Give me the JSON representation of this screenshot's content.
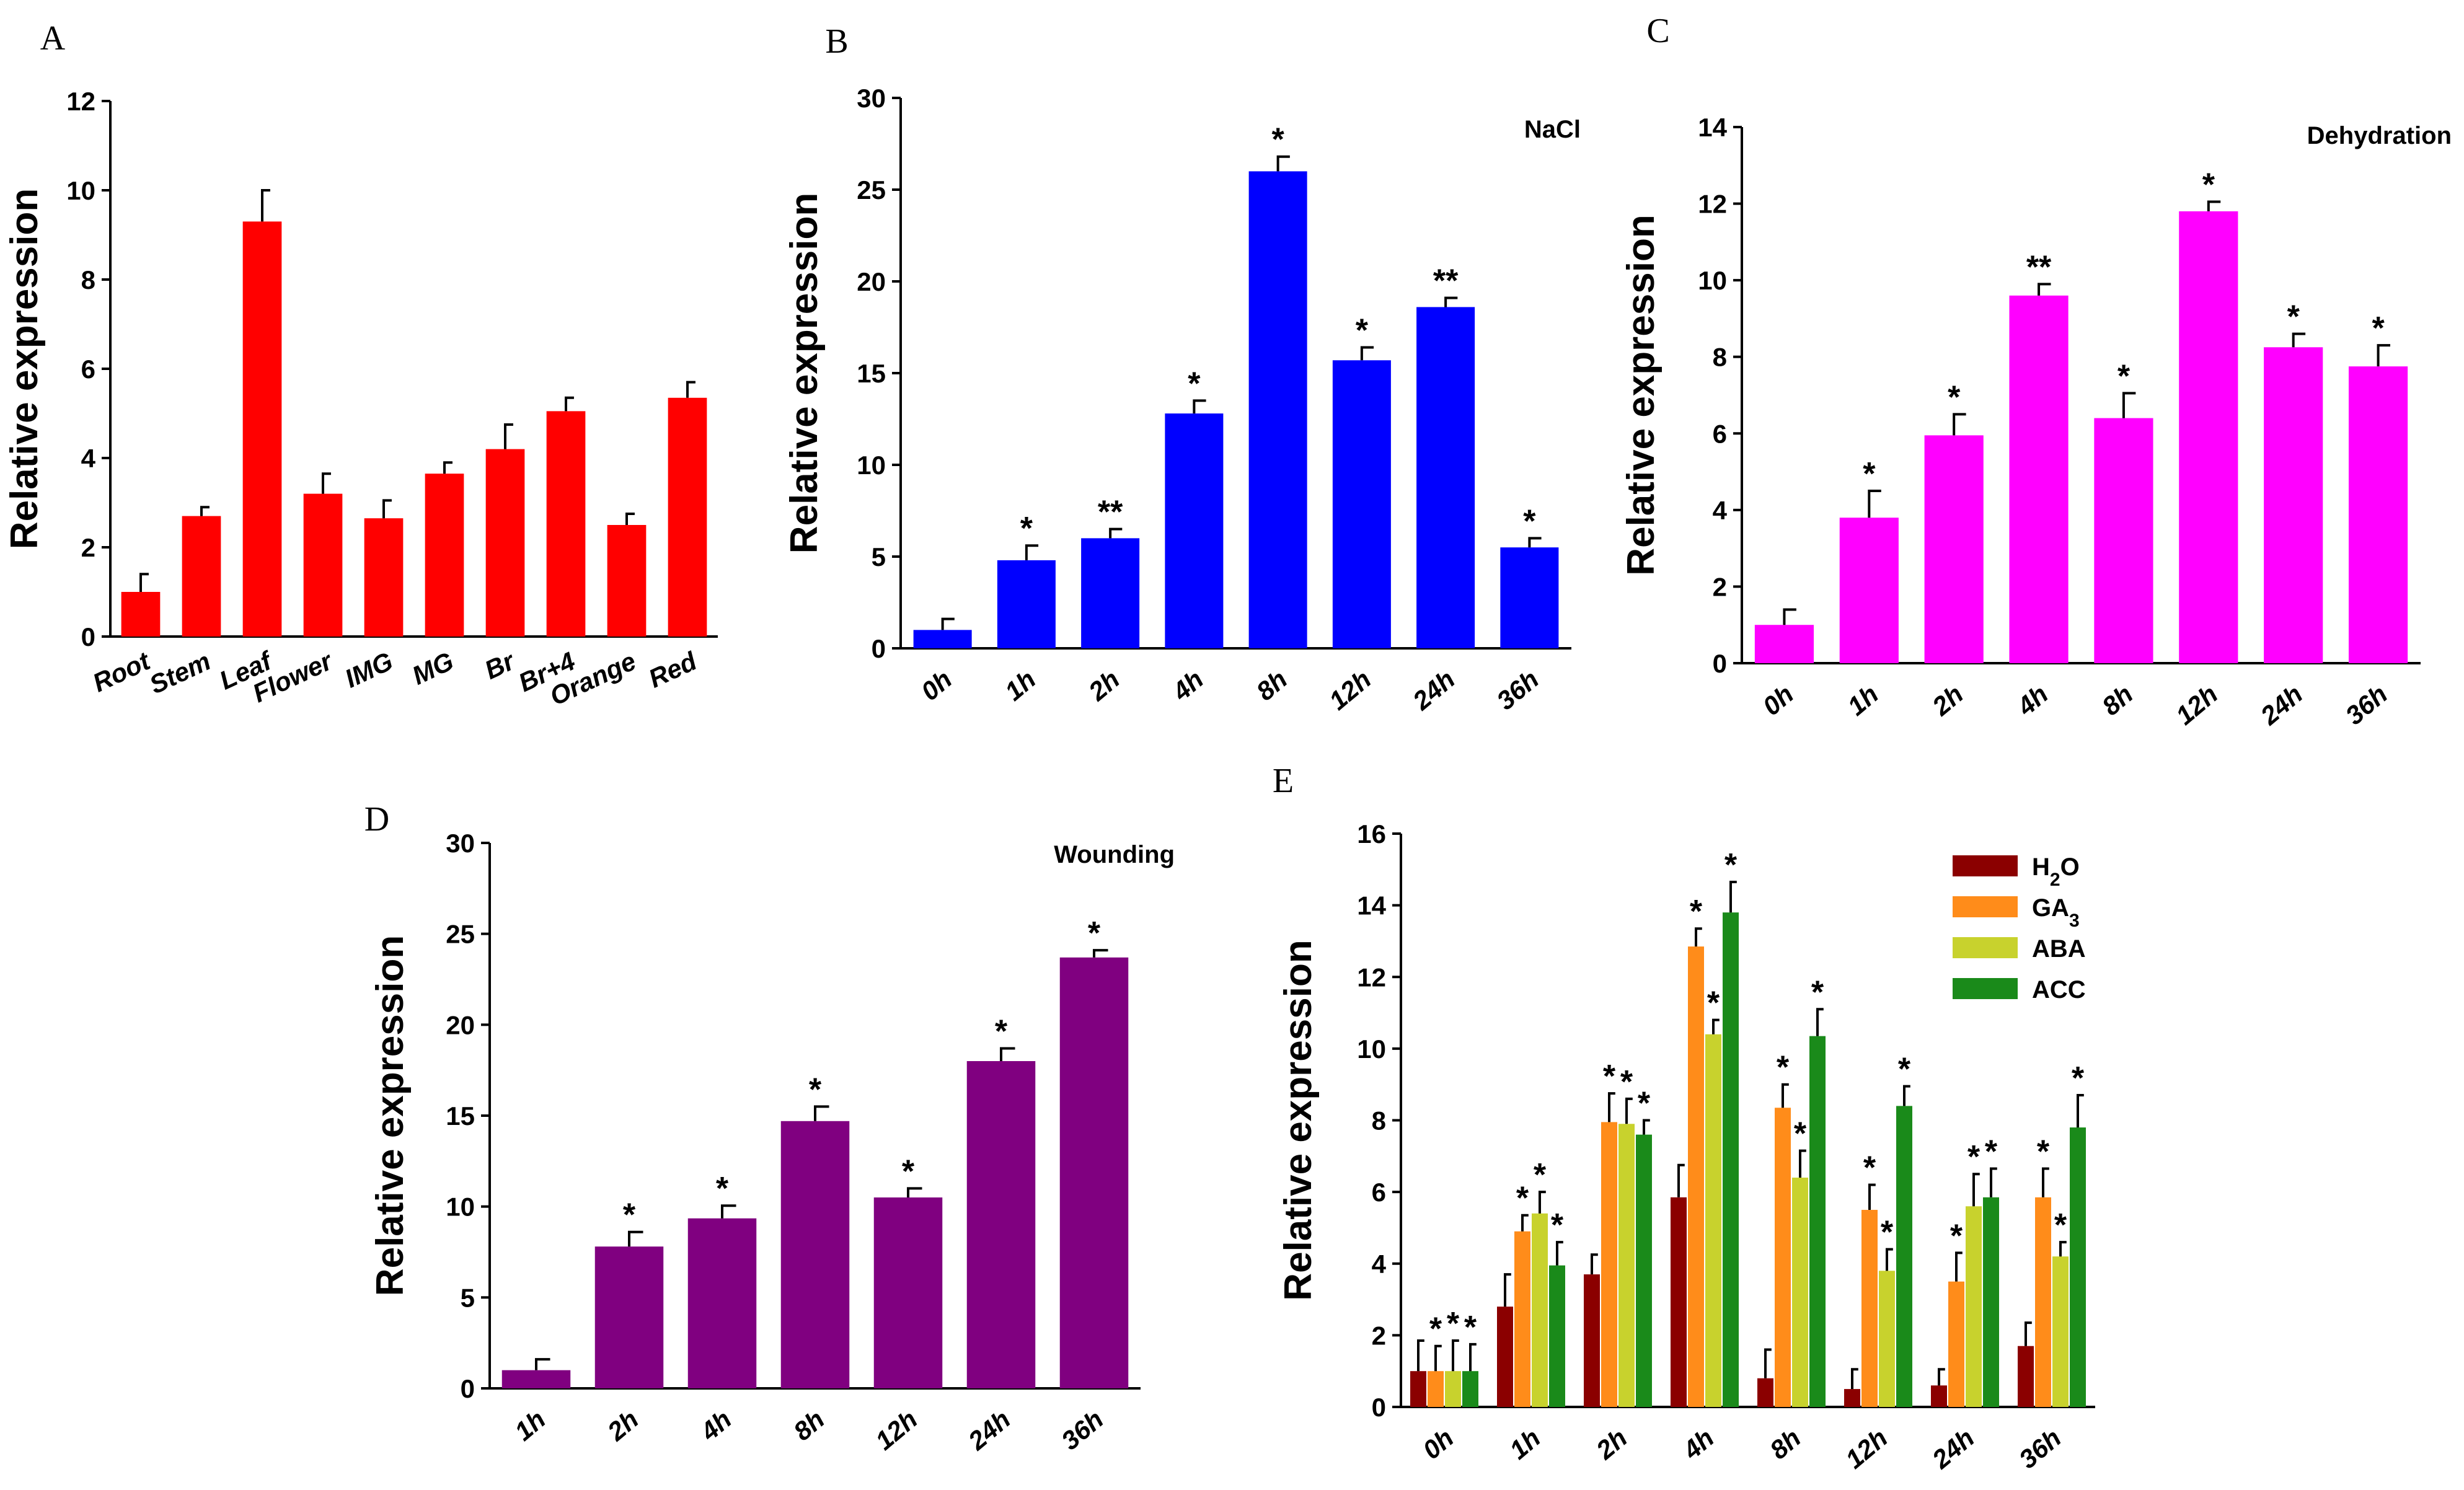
{
  "chart_data": [
    {
      "id": "A",
      "panel_label": "A",
      "type": "bar",
      "title": "",
      "ylabel": "Relative expression",
      "ylim": [
        0,
        12
      ],
      "yticks": [
        0,
        2,
        4,
        6,
        8,
        10,
        12
      ],
      "categories": [
        "Root",
        "Stem",
        "Leaf",
        "Flower",
        "IMG",
        "MG",
        "Br",
        "Br+4",
        "Orange",
        "Red"
      ],
      "series": [
        {
          "name": "Relative expression",
          "color": "#ff0000",
          "values": [
            1.0,
            2.7,
            9.3,
            3.2,
            2.65,
            3.65,
            4.2,
            5.05,
            2.5,
            5.35
          ],
          "errors": [
            0.4,
            0.2,
            0.7,
            0.45,
            0.4,
            0.25,
            0.55,
            0.3,
            0.25,
            0.35
          ],
          "labels": [
            "",
            "",
            "",
            "",
            "",
            "",
            "",
            "",
            "",
            ""
          ]
        }
      ]
    },
    {
      "id": "B",
      "panel_label": "B",
      "type": "bar",
      "title": "NaCl",
      "ylabel": "Relative expression",
      "ylim": [
        0,
        30
      ],
      "yticks": [
        0,
        5,
        10,
        15,
        20,
        25,
        30
      ],
      "categories": [
        "0h",
        "1h",
        "2h",
        "4h",
        "8h",
        "12h",
        "24h",
        "36h"
      ],
      "series": [
        {
          "name": "NaCl",
          "color": "#0000ff",
          "values": [
            1.0,
            4.8,
            6.0,
            12.8,
            26.0,
            15.7,
            18.6,
            5.5
          ],
          "errors": [
            0.6,
            0.8,
            0.5,
            0.7,
            0.8,
            0.7,
            0.5,
            0.5
          ],
          "labels": [
            "",
            "*",
            "**",
            "*",
            "*",
            "*",
            "**",
            "*"
          ]
        }
      ]
    },
    {
      "id": "C",
      "panel_label": "C",
      "type": "bar",
      "title": "Dehydration",
      "ylabel": "Relative expression",
      "ylim": [
        0,
        14
      ],
      "yticks": [
        0,
        2,
        4,
        6,
        8,
        10,
        12,
        14
      ],
      "categories": [
        "0h",
        "1h",
        "2h",
        "4h",
        "8h",
        "12h",
        "24h",
        "36h"
      ],
      "series": [
        {
          "name": "Dehydration",
          "color": "#ff00ff",
          "values": [
            1.0,
            3.8,
            5.95,
            9.6,
            6.4,
            11.8,
            8.25,
            7.75
          ],
          "errors": [
            0.4,
            0.7,
            0.55,
            0.3,
            0.65,
            0.25,
            0.35,
            0.55
          ],
          "labels": [
            "",
            "*",
            "*",
            "**",
            "*",
            "*",
            "*",
            "*"
          ]
        }
      ]
    },
    {
      "id": "D",
      "panel_label": "D",
      "type": "bar",
      "title": "Wounding",
      "ylabel": "Relative expression",
      "ylim": [
        0,
        30
      ],
      "yticks": [
        0,
        5,
        10,
        15,
        20,
        25,
        30
      ],
      "categories": [
        "1h",
        "2h",
        "4h",
        "8h",
        "12h",
        "24h",
        "36h"
      ],
      "series": [
        {
          "name": "Wounding",
          "color": "#800080",
          "values": [
            1.0,
            7.8,
            9.35,
            14.7,
            10.5,
            18.0,
            23.7
          ],
          "errors": [
            0.6,
            0.8,
            0.7,
            0.8,
            0.5,
            0.7,
            0.4
          ],
          "labels": [
            "",
            "*",
            "*",
            "*",
            "*",
            "*",
            "*"
          ]
        }
      ]
    },
    {
      "id": "E",
      "panel_label": "E",
      "type": "bar",
      "title": "",
      "ylabel": "Relative expression",
      "ylim": [
        0,
        16
      ],
      "yticks": [
        0,
        2,
        4,
        6,
        8,
        10,
        12,
        14,
        16
      ],
      "categories": [
        "0h",
        "1h",
        "2h",
        "4h",
        "8h",
        "12h",
        "24h",
        "36h"
      ],
      "legend_position": "top-right",
      "series": [
        {
          "name": "H2O",
          "legend_text": "H",
          "legend_sub": "2",
          "legend_tail": "O",
          "color": "#8b0000",
          "values": [
            1.0,
            2.8,
            3.7,
            5.85,
            0.8,
            0.5,
            0.6,
            1.7
          ],
          "errors": [
            0.85,
            0.9,
            0.55,
            0.9,
            0.8,
            0.55,
            0.45,
            0.65
          ],
          "labels": [
            "",
            "",
            "",
            "",
            "",
            "",
            "",
            ""
          ]
        },
        {
          "name": "GA3",
          "legend_text": "GA",
          "legend_sub": "3",
          "legend_tail": "",
          "color": "#ff8c1a",
          "values": [
            1.0,
            4.9,
            7.95,
            12.85,
            8.35,
            5.5,
            3.5,
            5.85
          ],
          "errors": [
            0.7,
            0.45,
            0.8,
            0.5,
            0.65,
            0.7,
            0.8,
            0.8
          ],
          "labels": [
            "*",
            "*",
            "*",
            "*",
            "*",
            "*",
            "*",
            "*"
          ]
        },
        {
          "name": "ABA",
          "legend_text": "ABA",
          "legend_sub": "",
          "legend_tail": "",
          "color": "#c8d22d",
          "values": [
            1.0,
            5.4,
            7.9,
            10.4,
            6.4,
            3.8,
            5.6,
            4.2
          ],
          "errors": [
            0.85,
            0.6,
            0.7,
            0.4,
            0.75,
            0.6,
            0.9,
            0.4
          ],
          "labels": [
            "*",
            "*",
            "*",
            "*",
            "*",
            "*",
            "*",
            "*"
          ]
        },
        {
          "name": "ACC",
          "legend_text": "ACC",
          "legend_sub": "",
          "legend_tail": "",
          "color": "#1a8a1a",
          "values": [
            1.0,
            3.95,
            7.6,
            13.8,
            10.35,
            8.4,
            5.85,
            7.8
          ],
          "errors": [
            0.75,
            0.65,
            0.4,
            0.85,
            0.75,
            0.55,
            0.8,
            0.9
          ],
          "labels": [
            "*",
            "*",
            "*",
            "*",
            "*",
            "*",
            "*",
            "*"
          ]
        }
      ]
    }
  ]
}
